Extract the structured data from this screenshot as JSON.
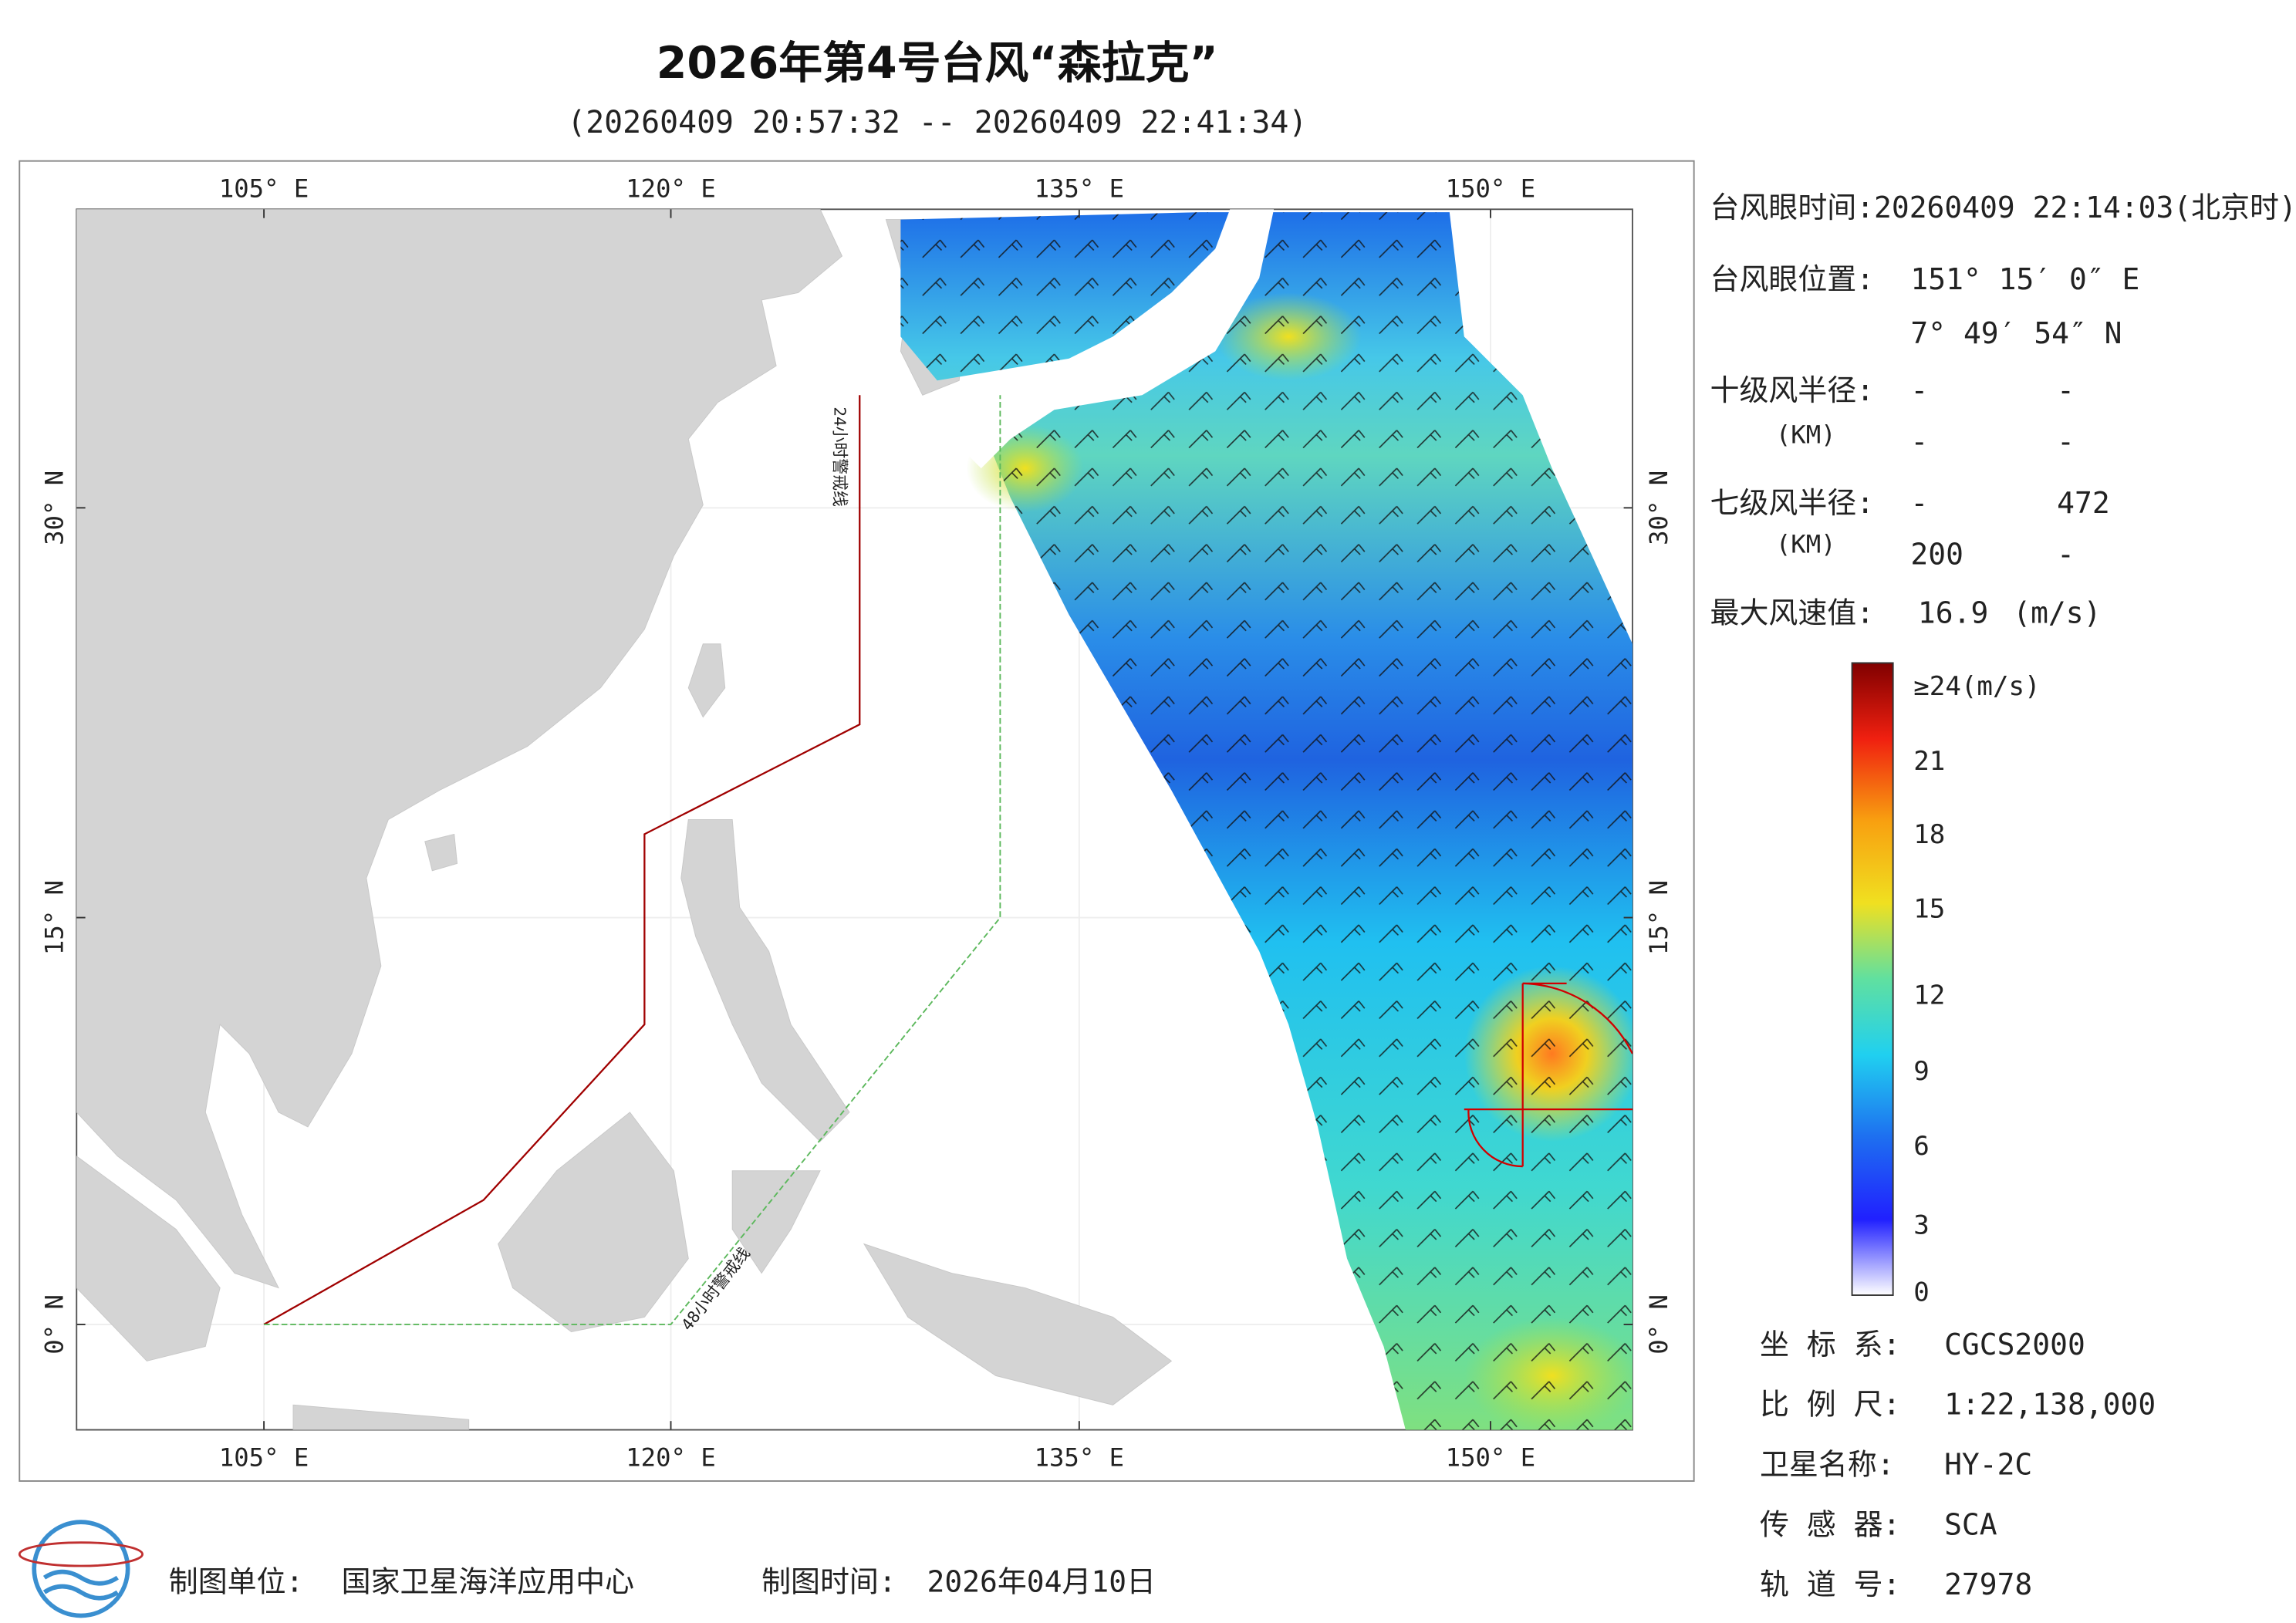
{
  "title": "2026年第4号台风“森拉克”",
  "subtitle": "(20260409 20:57:32 -- 20260409 22:41:34)",
  "map": {
    "lon_ticks": [
      "105° E",
      "120° E",
      "135° E",
      "150° E"
    ],
    "lat_ticks": [
      "30° N",
      "15° N",
      "0° N"
    ],
    "warning_lines": [
      "24小时警戒线",
      "48小时警戒线"
    ]
  },
  "info": {
    "eye_time": "台风眼时间:20260409 22:14:03(北京时)",
    "eye_position": {
      "label": "台风眼位置:",
      "lon": "151° 15′ 0″ E",
      "lat": "7° 49′ 54″ N"
    },
    "r10": {
      "label": "十级风半径:",
      "unit": "(KM)",
      "values": [
        "-",
        "-",
        "-",
        "-"
      ]
    },
    "r7": {
      "label": "七级风半径:",
      "unit": "(KM)",
      "values": [
        "-",
        "472",
        "200",
        "-"
      ]
    },
    "max_wind": {
      "label": "最大风速值:",
      "value": "16.9",
      "unit": "(m/s)"
    }
  },
  "colorbar": {
    "labels": [
      "≥24(m/s)",
      "21",
      "18",
      "15",
      "12",
      "9",
      "6",
      "3",
      "0"
    ]
  },
  "metadata": [
    {
      "label": "坐 标 系:",
      "value": "CGCS2000"
    },
    {
      "label": "比 例 尺:",
      "value": "1:22,138,000"
    },
    {
      "label": "卫星名称:",
      "value": "HY-2C"
    },
    {
      "label": "传 感 器:",
      "value": "SCA"
    },
    {
      "label": "轨 道 号:",
      "value": "27978"
    }
  ],
  "footer": {
    "producer_label": "制图单位:",
    "producer": "国家卫星海洋应用中心",
    "date_label": "制图时间:",
    "date": "2026年04月10日"
  }
}
